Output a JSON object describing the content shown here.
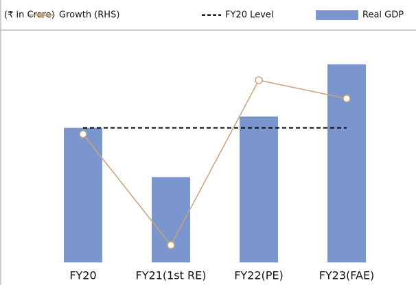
{
  "chart_data": {
    "type": "bar_line",
    "unit_label": "(₹ in Crore)",
    "categories": [
      "FY20",
      "FY21(1st RE)",
      "FY22(PE)",
      "FY23(FAE)"
    ],
    "series": [
      {
        "name": "Real GDP",
        "type": "bar",
        "color": "#7b96cf",
        "values": [
          14516000,
          13559000,
          14736000,
          15752000
        ]
      },
      {
        "name": "Growth (RHS)",
        "type": "line",
        "axis": "y2",
        "color": "#c8a27a",
        "values": [
          3.7,
          -6.6,
          8.7,
          7.0
        ]
      }
    ],
    "reference_line": {
      "name": "FY20 Level",
      "value": 14516000,
      "color": "#000000"
    },
    "ylim": [
      11900000,
      16470000
    ],
    "y2lim": [
      -8.2,
      13.6
    ]
  }
}
